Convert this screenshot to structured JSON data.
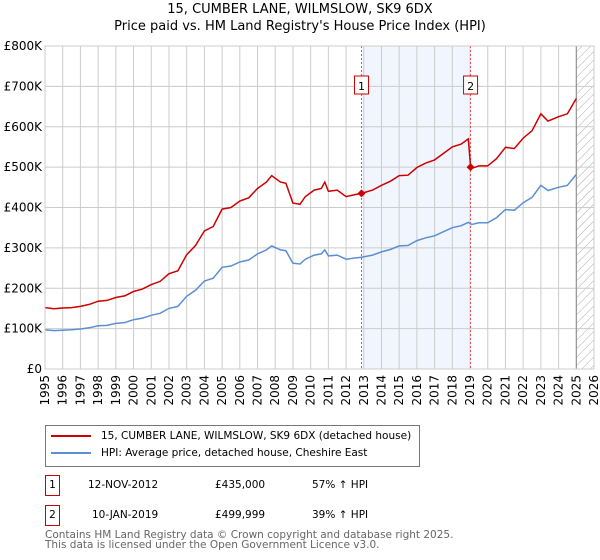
{
  "chart_data": {
    "type": "line",
    "title": "15, CUMBER LANE, WILMSLOW, SK9 6DX",
    "subtitle": "Price paid vs. HM Land Registry's House Price Index (HPI)",
    "xlabel": "",
    "ylabel": "",
    "xlim": [
      1995,
      2026
    ],
    "ylim": [
      0,
      800000
    ],
    "x_ticks": [
      "1995",
      "1996",
      "1997",
      "1998",
      "1999",
      "2000",
      "2001",
      "2002",
      "2003",
      "2004",
      "2005",
      "2006",
      "2007",
      "2008",
      "2009",
      "2010",
      "2011",
      "2012",
      "2013",
      "2014",
      "2015",
      "2016",
      "2017",
      "2018",
      "2019",
      "2020",
      "2021",
      "2022",
      "2023",
      "2024",
      "2025",
      "2026"
    ],
    "y_ticks": [
      {
        "v": 0,
        "label": "£0"
      },
      {
        "v": 100000,
        "label": "£100K"
      },
      {
        "v": 200000,
        "label": "£200K"
      },
      {
        "v": 300000,
        "label": "£300K"
      },
      {
        "v": 400000,
        "label": "£400K"
      },
      {
        "v": 500000,
        "label": "£500K"
      },
      {
        "v": 600000,
        "label": "£600K"
      },
      {
        "v": 700000,
        "label": "£700K"
      },
      {
        "v": 800000,
        "label": "£800K"
      }
    ],
    "grid": true,
    "series": [
      {
        "name": "15, CUMBER LANE, WILMSLOW, SK9 6DX (detached house)",
        "color": "#cc0000",
        "x": [
          1995,
          1995.5,
          1996,
          1996.5,
          1997,
          1997.5,
          1998,
          1998.5,
          1999,
          1999.5,
          2000,
          2000.5,
          2001,
          2001.5,
          2002,
          2002.5,
          2003,
          2003.5,
          2004,
          2004.5,
          2005,
          2005.5,
          2006,
          2006.5,
          2007,
          2007.5,
          2007.8,
          2008.3,
          2008.6,
          2009,
          2009.4,
          2009.7,
          2010.2,
          2010.6,
          2010.8,
          2011,
          2011.5,
          2012,
          2012.5,
          2012.87,
          2013.5,
          2014,
          2014.5,
          2015,
          2015.5,
          2016,
          2016.5,
          2017,
          2017.5,
          2018,
          2018.5,
          2018.9,
          2019.03,
          2019.1,
          2019.5,
          2020,
          2020.5,
          2021,
          2021.5,
          2022,
          2022.5,
          2023,
          2023.4,
          2024,
          2024.5,
          2025
        ],
        "y": [
          152,
          149,
          151,
          152,
          155,
          160,
          168,
          170,
          177,
          181,
          192,
          198,
          209,
          217,
          236,
          243,
          283,
          306,
          342,
          353,
          396,
          400,
          416,
          424,
          447,
          463,
          479,
          463,
          460,
          411,
          408,
          427,
          443,
          447,
          463,
          440,
          443,
          427,
          432,
          435,
          443,
          455,
          465,
          479,
          480,
          499,
          510,
          518,
          534,
          550,
          557,
          570,
          500,
          497,
          503,
          503,
          521,
          549,
          546,
          572,
          590,
          632,
          614,
          625,
          632,
          670
        ]
      },
      {
        "name": "HPI: Average price, detached house, Cheshire East",
        "color": "#5b8fd4",
        "x": [
          1995,
          1995.5,
          1996,
          1996.5,
          1997,
          1997.5,
          1998,
          1998.5,
          1999,
          1999.5,
          2000,
          2000.5,
          2001,
          2001.5,
          2002,
          2002.5,
          2003,
          2003.5,
          2004,
          2004.5,
          2005,
          2005.5,
          2006,
          2006.5,
          2007,
          2007.5,
          2007.8,
          2008.3,
          2008.6,
          2009,
          2009.4,
          2009.7,
          2010.2,
          2010.6,
          2010.8,
          2011,
          2011.5,
          2012,
          2012.5,
          2012.87,
          2013.5,
          2014,
          2014.5,
          2015,
          2015.5,
          2016,
          2016.5,
          2017,
          2017.5,
          2018,
          2018.5,
          2018.9,
          2019.1,
          2019.5,
          2020,
          2020.5,
          2021,
          2021.5,
          2022,
          2022.5,
          2023,
          2023.4,
          2024,
          2024.5,
          2025
        ],
        "y": [
          97,
          95,
          96,
          97,
          99,
          102,
          107,
          108,
          113,
          115,
          122,
          126,
          133,
          138,
          150,
          155,
          180,
          195,
          218,
          225,
          252,
          255,
          265,
          270,
          285,
          295,
          305,
          295,
          293,
          262,
          260,
          272,
          282,
          285,
          295,
          280,
          282,
          272,
          275,
          277,
          282,
          290,
          296,
          305,
          306,
          318,
          325,
          330,
          340,
          350,
          355,
          363,
          358,
          362,
          362,
          375,
          395,
          393,
          412,
          425,
          455,
          442,
          450,
          455,
          482
        ]
      }
    ],
    "y_units": "thousands GBP",
    "sales": [
      {
        "label": "1",
        "x": 2012.87,
        "y": 435
      },
      {
        "label": "2",
        "x": 2019.03,
        "y": 500
      }
    ],
    "shaded_range": [
      2012.87,
      2019.03
    ],
    "forecast_hatch_from": 2025,
    "legend_placement": "bottom"
  },
  "legend": [
    "15, CUMBER LANE, WILMSLOW, SK9 6DX (detached house)",
    "HPI: Average price, detached house, Cheshire East"
  ],
  "transactions": [
    {
      "num": "1",
      "date": "12-NOV-2012",
      "price": "£435,000",
      "hpi": "57% ↑ HPI"
    },
    {
      "num": "2",
      "date": "10-JAN-2019",
      "price": "£499,999",
      "hpi": "39% ↑ HPI"
    }
  ],
  "footer": [
    "Contains HM Land Registry data © Crown copyright and database right 2025.",
    "This data is licensed under the Open Government Licence v3.0."
  ]
}
